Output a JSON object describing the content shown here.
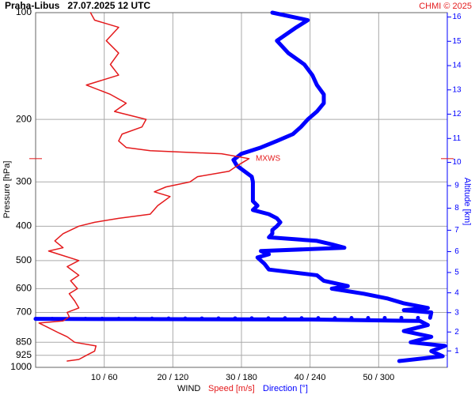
{
  "chart_data": {
    "type": "profile",
    "title": "Praha-Libus   27.07.2025 12 UTC",
    "credit": "CHMI © 2025",
    "ylabel": "Pressure [hPa]",
    "y2label": "Altitude [km]",
    "xlabel": "WIND",
    "yscale": "log",
    "ylim": [
      100,
      1000
    ],
    "yticks": [
      100,
      200,
      300,
      400,
      500,
      600,
      700,
      850,
      925,
      1000
    ],
    "y2ticks": [
      1,
      2,
      3,
      4,
      5,
      6,
      7,
      8,
      9,
      10,
      11,
      12,
      13,
      14,
      15,
      16
    ],
    "xlim": [
      0,
      60
    ],
    "x2lim": [
      0,
      360
    ],
    "xticks": [
      {
        "value": 10,
        "label": "10 / 60"
      },
      {
        "value": 20,
        "label": "20 / 120"
      },
      {
        "value": 30,
        "label": "30 / 180"
      },
      {
        "value": 40,
        "label": "40 / 240"
      },
      {
        "value": 50,
        "label": "50 / 300"
      }
    ],
    "grid": true,
    "annotations": [
      {
        "text": "MXWS",
        "pressure": 258
      }
    ],
    "series": [
      {
        "name": "Speed [m/s]",
        "color": "#e41a1c",
        "axis": "x",
        "pressure": [
          960,
          950,
          925,
          900,
          870,
          850,
          820,
          800,
          770,
          750,
          740,
          720,
          700,
          680,
          650,
          620,
          600,
          570,
          550,
          520,
          500,
          480,
          470,
          460,
          440,
          420,
          400,
          390,
          380,
          370,
          350,
          330,
          320,
          310,
          300,
          290,
          280,
          270,
          258,
          250,
          245,
          240,
          230,
          220,
          210,
          200,
          190,
          180,
          170,
          160,
          150,
          140,
          130,
          120,
          110,
          105,
          100
        ],
        "values": [
          4.6,
          6.3,
          7.4,
          8.6,
          8.8,
          5.7,
          4.6,
          3.4,
          1.7,
          0.5,
          4.0,
          4.9,
          4.6,
          6.3,
          5.7,
          4.9,
          6.1,
          5.1,
          6.3,
          4.6,
          6.3,
          3.4,
          1.9,
          4.0,
          2.8,
          4.0,
          6.3,
          8.6,
          12.1,
          16.7,
          17.8,
          19.6,
          17.3,
          19.0,
          22.5,
          23.6,
          28.2,
          29.4,
          31.1,
          27.1,
          16.7,
          13.2,
          12.1,
          12.6,
          15.5,
          16.1,
          11.5,
          13.2,
          10.9,
          7.4,
          12.1,
          10.9,
          12.1,
          10.3,
          12.1,
          8.6,
          8.0
        ]
      },
      {
        "name": "Direction [°]",
        "color": "#0000ff",
        "axis": "x2",
        "pressure": [
          960,
          930,
          900,
          870,
          850,
          820,
          790,
          760,
          740,
          733,
          731,
          730,
          725,
          700,
          690,
          680,
          660,
          640,
          620,
          600,
          590,
          570,
          550,
          530,
          510,
          500,
          490,
          480,
          470,
          460,
          450,
          440,
          430,
          420,
          410,
          400,
          390,
          380,
          370,
          360,
          350,
          340,
          320,
          300,
          290,
          270,
          260,
          250,
          240,
          230,
          220,
          210,
          200,
          190,
          180,
          170,
          160,
          150,
          140,
          130,
          120,
          110,
          105,
          100
        ],
        "values": [
          318,
          356,
          346,
          358,
          328,
          346,
          322,
          343,
          336,
          240,
          80,
          0,
          345,
          346,
          322,
          343,
          322,
          308,
          287,
          259,
          273,
          252,
          246,
          204,
          200,
          197,
          194,
          204,
          197,
          270,
          259,
          246,
          204,
          207,
          207,
          211,
          214,
          211,
          204,
          190,
          194,
          190,
          190,
          190,
          189,
          176,
          173,
          180,
          197,
          211,
          225,
          232,
          238,
          246,
          252,
          252,
          246,
          242,
          235,
          221,
          211,
          228,
          238,
          207
        ]
      }
    ]
  }
}
